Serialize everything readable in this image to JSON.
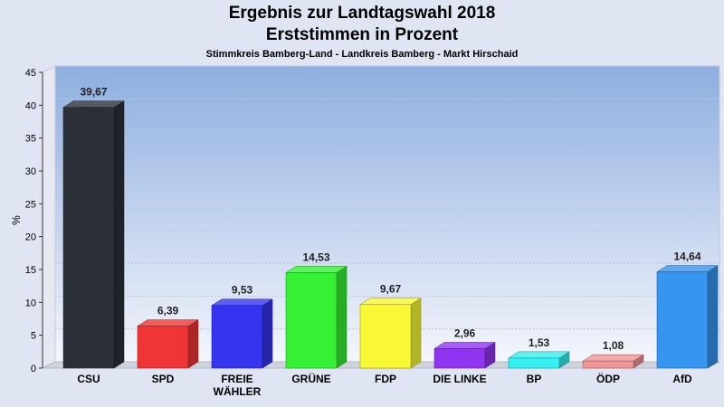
{
  "chart_data": {
    "type": "bar",
    "title": "Ergebnis zur Landtagswahl 2018",
    "subtitle": "Erststimmen in Prozent",
    "caption": "Stimmkreis Bamberg-Land - Landkreis Bamberg - Markt Hirschaid",
    "ylabel": "%",
    "xlabel": "",
    "ylim": [
      0,
      45
    ],
    "yticks": [
      0,
      5,
      10,
      15,
      20,
      25,
      30,
      35,
      40,
      45
    ],
    "categories": [
      "CSU",
      "SPD",
      "FREIE WÄHLER",
      "GRÜNE",
      "FDP",
      "DIE LINKE",
      "BP",
      "ÖDP",
      "AfD"
    ],
    "category_lines": [
      [
        "CSU"
      ],
      [
        "SPD"
      ],
      [
        "FREIE",
        "WÄHLER"
      ],
      [
        "GRÜNE"
      ],
      [
        "FDP"
      ],
      [
        "DIE LINKE"
      ],
      [
        "BP"
      ],
      [
        "ÖDP"
      ],
      [
        "AfD"
      ]
    ],
    "values": [
      39.67,
      6.39,
      9.53,
      14.53,
      9.67,
      2.96,
      1.53,
      1.08,
      14.64
    ],
    "value_labels": [
      "39,67",
      "6,39",
      "9,53",
      "14,53",
      "9,67",
      "2,96",
      "1,53",
      "1,08",
      "14,64"
    ],
    "colors": [
      "#2b2f38",
      "#f03535",
      "#3535f0",
      "#35f035",
      "#f8f835",
      "#9035f0",
      "#35f0f0",
      "#f09595",
      "#3595f0"
    ]
  }
}
